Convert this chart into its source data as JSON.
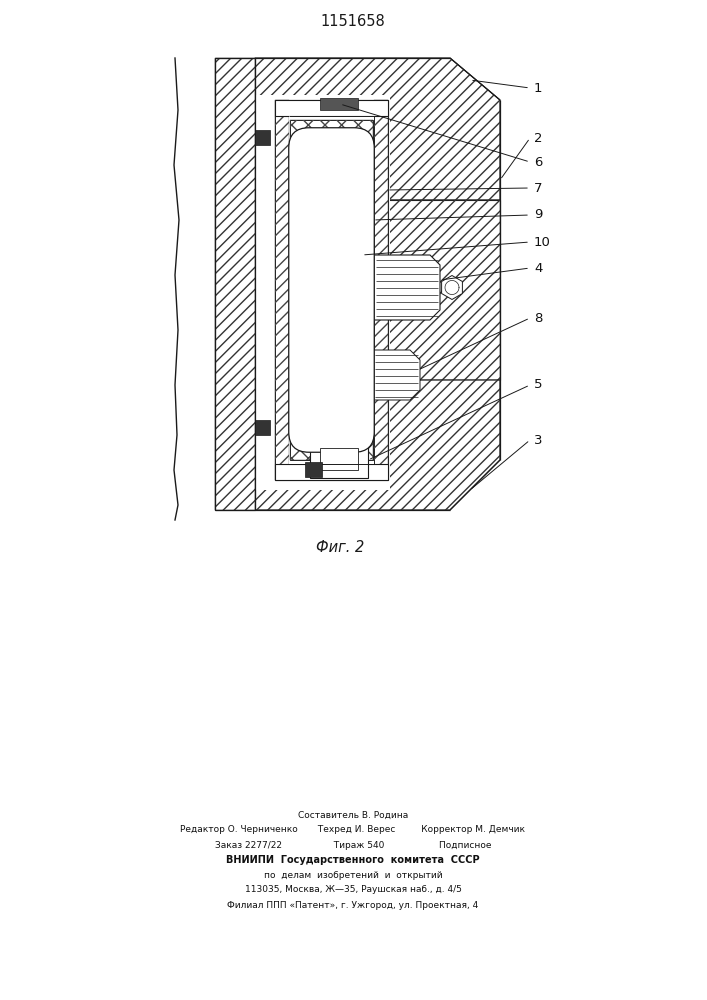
{
  "title": "1151658",
  "fig_label": "Фиг. 2",
  "footer_lines": [
    "Составитель В. Родина",
    "Редактор О. Черниченко       Техред И. Верес         Корректор М. Демчик",
    "Заказ 2277/22                  Тираж 540                   Подписное",
    "ВНИИПИ  Государственного  комитета  СССР",
    "по  делам  изобретений  и  открытий",
    "113035, Москва, Ж—35, Раушская наб., д. 4/5",
    "Филиал ППП «Патент», г. Ужгород, ул. Проектная, 4"
  ],
  "bg_color": "#ffffff",
  "line_color": "#1a1a1a"
}
